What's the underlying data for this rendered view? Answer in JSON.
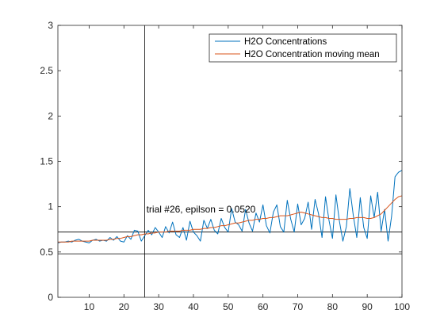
{
  "chart_data": {
    "type": "line",
    "title": "",
    "xlabel": "",
    "ylabel": "",
    "xlim": [
      1,
      100
    ],
    "ylim": [
      0,
      3
    ],
    "x_ticks": [
      10,
      20,
      30,
      40,
      50,
      60,
      70,
      80,
      90,
      100
    ],
    "x_tick_labels": [
      "10",
      "20",
      "30",
      "40",
      "50",
      "60",
      "70",
      "80",
      "90",
      "100"
    ],
    "y_ticks": [
      0,
      0.5,
      1,
      1.5,
      2,
      2.5,
      3
    ],
    "y_tick_labels": [
      "0",
      "0.5",
      "1",
      "1.5",
      "2",
      "2.5",
      "3"
    ],
    "grid": false,
    "legend_position": "top-right",
    "x": [
      1,
      2,
      3,
      4,
      5,
      6,
      7,
      8,
      9,
      10,
      11,
      12,
      13,
      14,
      15,
      16,
      17,
      18,
      19,
      20,
      21,
      22,
      23,
      24,
      25,
      26,
      27,
      28,
      29,
      30,
      31,
      32,
      33,
      34,
      35,
      36,
      37,
      38,
      39,
      40,
      41,
      42,
      43,
      44,
      45,
      46,
      47,
      48,
      49,
      50,
      51,
      52,
      53,
      54,
      55,
      56,
      57,
      58,
      59,
      60,
      61,
      62,
      63,
      64,
      65,
      66,
      67,
      68,
      69,
      70,
      71,
      72,
      73,
      74,
      75,
      76,
      77,
      78,
      79,
      80,
      81,
      82,
      83,
      84,
      85,
      86,
      87,
      88,
      89,
      90,
      91,
      92,
      93,
      94,
      95,
      96,
      97,
      98,
      99,
      100
    ],
    "series": [
      {
        "name": "H2O Concentrations",
        "color": "#0072BD",
        "values": [
          0.6,
          0.61,
          0.61,
          0.62,
          0.61,
          0.63,
          0.64,
          0.62,
          0.61,
          0.6,
          0.63,
          0.64,
          0.62,
          0.63,
          0.62,
          0.66,
          0.63,
          0.67,
          0.62,
          0.61,
          0.68,
          0.64,
          0.74,
          0.73,
          0.62,
          0.68,
          0.74,
          0.69,
          0.77,
          0.72,
          0.66,
          0.78,
          0.71,
          0.83,
          0.69,
          0.66,
          0.77,
          0.63,
          0.84,
          0.72,
          0.68,
          0.62,
          0.85,
          0.76,
          0.86,
          0.74,
          0.7,
          0.87,
          0.77,
          0.72,
          0.98,
          0.83,
          0.8,
          0.73,
          0.97,
          0.82,
          0.73,
          0.93,
          0.83,
          1.02,
          0.79,
          0.71,
          0.94,
          1.02,
          0.78,
          0.72,
          1.07,
          0.86,
          0.72,
          1.03,
          0.8,
          0.87,
          1.05,
          0.75,
          1.08,
          0.92,
          0.66,
          1.11,
          0.85,
          0.65,
          1.13,
          0.84,
          0.62,
          0.78,
          1.2,
          0.9,
          0.66,
          1.1,
          0.77,
          0.65,
          1.12,
          0.88,
          1.16,
          0.73,
          0.97,
          0.62,
          0.89,
          1.33,
          1.38,
          1.4
        ]
      },
      {
        "name": "H2O Concentration moving mean",
        "color": "#D95319",
        "values": [
          0.61,
          0.61,
          0.61,
          0.61,
          0.62,
          0.62,
          0.62,
          0.62,
          0.62,
          0.62,
          0.63,
          0.63,
          0.63,
          0.63,
          0.63,
          0.64,
          0.64,
          0.65,
          0.65,
          0.66,
          0.67,
          0.67,
          0.68,
          0.69,
          0.69,
          0.7,
          0.7,
          0.71,
          0.71,
          0.72,
          0.72,
          0.72,
          0.73,
          0.73,
          0.73,
          0.73,
          0.74,
          0.74,
          0.74,
          0.75,
          0.75,
          0.75,
          0.76,
          0.76,
          0.77,
          0.77,
          0.78,
          0.79,
          0.79,
          0.8,
          0.81,
          0.82,
          0.82,
          0.83,
          0.84,
          0.85,
          0.85,
          0.86,
          0.86,
          0.87,
          0.87,
          0.88,
          0.88,
          0.89,
          0.9,
          0.9,
          0.9,
          0.91,
          0.92,
          0.93,
          0.94,
          0.93,
          0.92,
          0.91,
          0.9,
          0.89,
          0.88,
          0.88,
          0.87,
          0.87,
          0.86,
          0.86,
          0.86,
          0.86,
          0.87,
          0.87,
          0.88,
          0.88,
          0.88,
          0.87,
          0.87,
          0.88,
          0.9,
          0.92,
          0.96,
          1.0,
          1.04,
          1.08,
          1.11,
          1.12
        ]
      }
    ],
    "reference_lines": [
      {
        "orientation": "vertical",
        "x": 26
      },
      {
        "orientation": "horizontal",
        "y": 0.72
      },
      {
        "orientation": "horizontal",
        "y": 0.48
      }
    ],
    "annotations": [
      {
        "text": "trial #26, epilson = 0.0520",
        "x": 26,
        "y": 0.98
      }
    ]
  }
}
